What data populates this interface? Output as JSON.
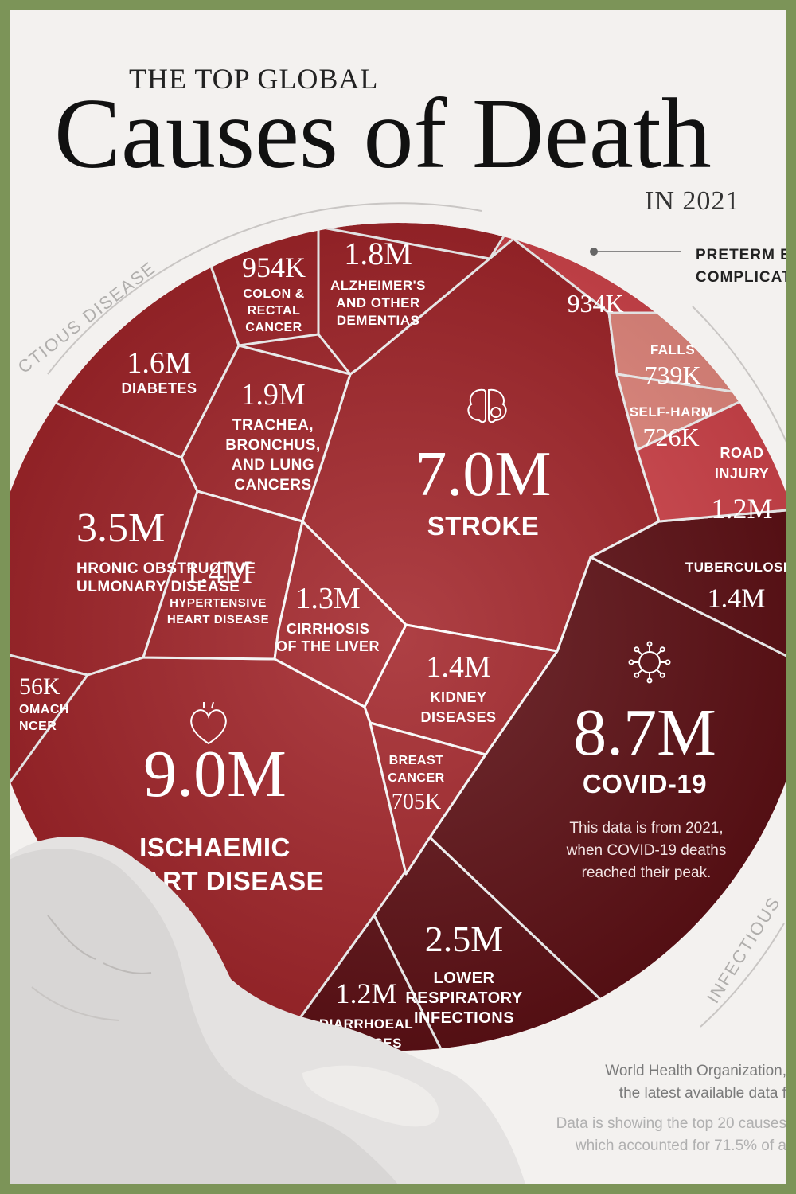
{
  "header": {
    "kicker": "THE TOP GLOBAL",
    "title": "Causes of Death",
    "year": "IN 2021"
  },
  "ring_labels": {
    "left": "CTIOUS DISEASE",
    "right": "INFECTIOUS"
  },
  "callout": {
    "line1": "PRETERM B",
    "line2": "COMPLICAT"
  },
  "note": {
    "line1": "This data is from 2021,",
    "line2": "when COVID-19 deaths",
    "line3": "reached their peak."
  },
  "footer": {
    "source1": "World Health Organization,",
    "source2": "the latest available data f",
    "note1": "Data is showing the top 20 causes",
    "note2": "which accounted for 71.5% of a"
  },
  "colors": {
    "background": "#f3f1ef",
    "frame": "#7c9458",
    "noncommunicable": "#a3262b",
    "infectious": "#5f1116",
    "injuries_light": "#e98c82",
    "injuries_mid": "#d4464d"
  },
  "icons": [
    "brain-icon",
    "heart-icon",
    "virus-icon"
  ],
  "chart_data": {
    "type": "voronoi-treemap",
    "unit": "deaths",
    "cells": [
      {
        "name": "ISCHAEMIC HEART DISEASE",
        "value": "9.0M",
        "lines": [
          "ISCHAEMIC",
          "HEART DISEASE"
        ],
        "group": "noncommunicable"
      },
      {
        "name": "COVID-19",
        "value": "8.7M",
        "lines": [
          "COVID-19"
        ],
        "group": "infectious"
      },
      {
        "name": "STROKE",
        "value": "7.0M",
        "lines": [
          "STROKE"
        ],
        "group": "noncommunicable"
      },
      {
        "name": "CHRONIC OBSTRUCTIVE PULMONARY DISEASE",
        "value": "3.5M",
        "lines": [
          "HRONIC OBSTRUCTIVE",
          "ULMONARY DISEASE"
        ],
        "group": "noncommunicable"
      },
      {
        "name": "LOWER RESPIRATORY INFECTIONS",
        "value": "2.5M",
        "lines": [
          "LOWER",
          "RESPIRATORY",
          "INFECTIONS"
        ],
        "group": "infectious"
      },
      {
        "name": "TRACHEA, BRONCHUS, AND LUNG CANCERS",
        "value": "1.9M",
        "lines": [
          "TRACHEA,",
          "BRONCHUS,",
          "AND LUNG",
          "CANCERS"
        ],
        "group": "noncommunicable"
      },
      {
        "name": "ALZHEIMER'S AND OTHER DEMENTIAS",
        "value": "1.8M",
        "lines": [
          "ALZHEIMER'S",
          "AND OTHER",
          "DEMENTIAS"
        ],
        "group": "noncommunicable"
      },
      {
        "name": "DIABETES",
        "value": "1.6M",
        "lines": [
          "DIABETES"
        ],
        "group": "noncommunicable"
      },
      {
        "name": "HYPERTENSIVE HEART DISEASE",
        "value": "1.4M",
        "lines": [
          "HYPERTENSIVE",
          "HEART DISEASE"
        ],
        "group": "noncommunicable"
      },
      {
        "name": "KIDNEY DISEASES",
        "value": "1.4M",
        "lines": [
          "KIDNEY",
          "DISEASES"
        ],
        "group": "noncommunicable"
      },
      {
        "name": "TUBERCULOSIS",
        "value": "1.4M",
        "lines": [
          "TUBERCULOSI"
        ],
        "group": "infectious"
      },
      {
        "name": "CIRRHOSIS OF THE LIVER",
        "value": "1.3M",
        "lines": [
          "CIRRHOSIS",
          "OF THE LIVER"
        ],
        "group": "noncommunicable"
      },
      {
        "name": "DIARRHOEAL DISEASES",
        "value": "1.2M",
        "lines": [
          "DIARRHOEAL",
          "DISEASES"
        ],
        "group": "infectious"
      },
      {
        "name": "ROAD INJURY",
        "value": "1.2M",
        "lines": [
          "ROAD",
          "INJURY"
        ],
        "group": "injuries"
      },
      {
        "name": "COLON & RECTAL CANCER",
        "value": "954K",
        "lines": [
          "COLON &",
          "RECTAL",
          "CANCER"
        ],
        "group": "noncommunicable"
      },
      {
        "name": "STOMACH CANCER",
        "value": "56K",
        "lines": [
          "OMACH",
          "NCER"
        ],
        "group": "noncommunicable"
      },
      {
        "name": "PRETERM BIRTH COMPLICATIONS",
        "value": "934K",
        "lines": [],
        "group": "injuries"
      },
      {
        "name": "FALLS",
        "value": "739K",
        "lines": [
          "FALLS"
        ],
        "group": "injuries"
      },
      {
        "name": "SELF-HARM",
        "value": "726K",
        "lines": [
          "SELF-HARM"
        ],
        "group": "injuries"
      },
      {
        "name": "BREAST CANCER",
        "value": "705K",
        "lines": [
          "BREAST",
          "CANCER"
        ],
        "group": "noncommunicable"
      }
    ]
  }
}
